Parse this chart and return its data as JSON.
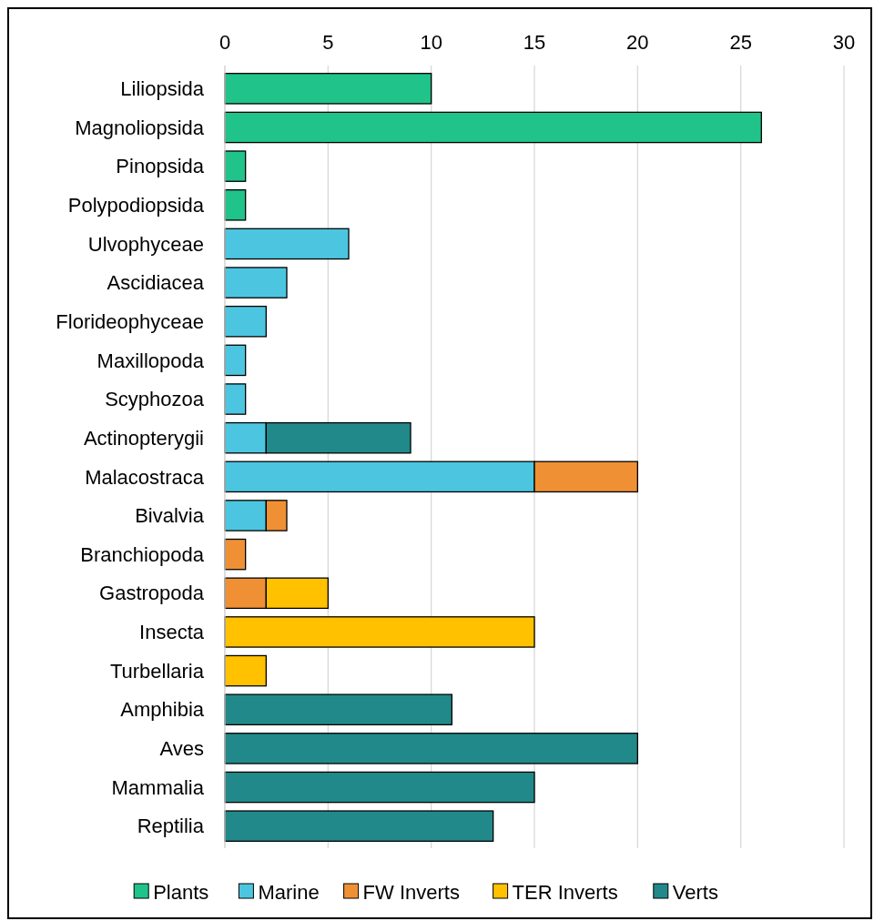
{
  "chart_data": {
    "type": "bar",
    "orientation": "horizontal",
    "stacked": true,
    "grid": "x",
    "legend": "bottom",
    "categories": [
      "Liliopsida",
      "Magnoliopsida",
      "Pinopsida",
      "Polypodiopsida",
      "Ulvophyceae",
      "Ascidiacea",
      "Florideophyceae",
      "Maxillopoda",
      "Scyphozoa",
      "Actinopterygii",
      "Malacostraca",
      "Bivalvia",
      "Branchiopoda",
      "Gastropoda",
      "Insecta",
      "Turbellaria",
      "Amphibia",
      "Aves",
      "Mammalia",
      "Reptilia"
    ],
    "xlim": [
      0,
      30
    ],
    "xticks": [
      0,
      5,
      10,
      15,
      20,
      25,
      30
    ],
    "series": [
      {
        "name": "Plants",
        "color": "#20c38a",
        "values": [
          10,
          26,
          1,
          1,
          null,
          null,
          null,
          null,
          null,
          null,
          null,
          null,
          null,
          null,
          null,
          null,
          null,
          null,
          null,
          null
        ]
      },
      {
        "name": "Marine",
        "color": "#4cc6e0",
        "values": [
          null,
          null,
          null,
          null,
          6,
          3,
          2,
          1,
          1,
          2,
          15,
          2,
          null,
          null,
          null,
          null,
          null,
          null,
          null,
          null
        ]
      },
      {
        "name": "FW Inverts",
        "color": "#ef9035",
        "values": [
          null,
          null,
          null,
          null,
          null,
          null,
          null,
          null,
          null,
          null,
          5,
          1,
          1,
          2,
          null,
          null,
          null,
          null,
          null,
          null
        ]
      },
      {
        "name": "TER Inverts",
        "color": "#ffc100",
        "values": [
          null,
          null,
          null,
          null,
          null,
          null,
          null,
          null,
          null,
          null,
          null,
          null,
          null,
          3,
          15,
          2,
          null,
          null,
          null,
          null
        ]
      },
      {
        "name": "Verts",
        "color": "#21898a",
        "values": [
          null,
          null,
          null,
          null,
          null,
          null,
          null,
          null,
          null,
          7,
          null,
          null,
          null,
          null,
          null,
          null,
          11,
          20,
          15,
          13
        ]
      }
    ]
  }
}
